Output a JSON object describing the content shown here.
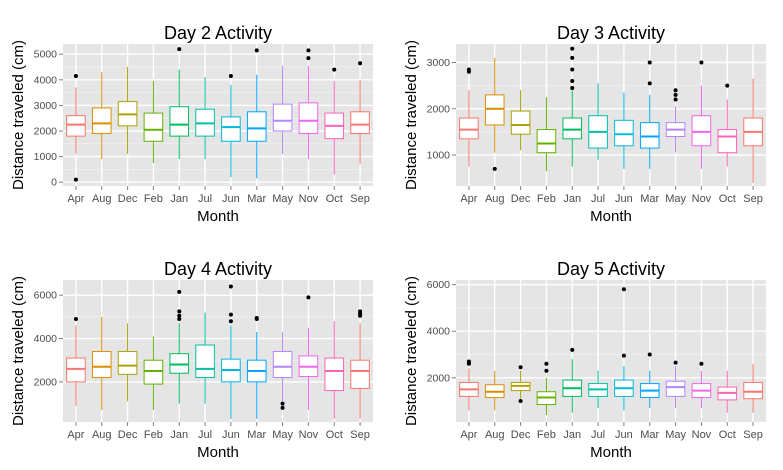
{
  "chart_data": [
    {
      "type": "box",
      "title": "Day 2 Activity",
      "xlabel": "Month",
      "ylabel": "Distance traveled (cm)",
      "ylim": [
        -150,
        5400
      ],
      "yticks": [
        0,
        1000,
        2000,
        3000,
        4000,
        5000
      ],
      "grid": true,
      "legend": "none",
      "categories": [
        "Apr",
        "Aug",
        "Dec",
        "Feb",
        "Jan",
        "Jul",
        "Jun",
        "Mar",
        "May",
        "Nov",
        "Oct",
        "Sep"
      ],
      "boxes": [
        {
          "min": 1100,
          "q1": 1800,
          "median": 2250,
          "q3": 2600,
          "max": 3700,
          "outliers": [
            4150,
            100
          ]
        },
        {
          "min": 900,
          "q1": 1900,
          "median": 2300,
          "q3": 2900,
          "max": 4300,
          "outliers": []
        },
        {
          "min": 1100,
          "q1": 2200,
          "median": 2650,
          "q3": 3150,
          "max": 4500,
          "outliers": []
        },
        {
          "min": 750,
          "q1": 1600,
          "median": 2050,
          "q3": 2700,
          "max": 3950,
          "outliers": []
        },
        {
          "min": 900,
          "q1": 1800,
          "median": 2250,
          "q3": 2950,
          "max": 4400,
          "outliers": [
            5200
          ]
        },
        {
          "min": 900,
          "q1": 1800,
          "median": 2300,
          "q3": 2850,
          "max": 4100,
          "outliers": []
        },
        {
          "min": 200,
          "q1": 1600,
          "median": 2150,
          "q3": 2550,
          "max": 3800,
          "outliers": [
            4150
          ]
        },
        {
          "min": 150,
          "q1": 1600,
          "median": 2100,
          "q3": 2750,
          "max": 4200,
          "outliers": [
            5150
          ]
        },
        {
          "min": 1100,
          "q1": 2000,
          "median": 2400,
          "q3": 3050,
          "max": 4550,
          "outliers": []
        },
        {
          "min": 900,
          "q1": 1900,
          "median": 2400,
          "q3": 3100,
          "max": 4550,
          "outliers": [
            5150,
            4850
          ]
        },
        {
          "min": 300,
          "q1": 1700,
          "median": 2200,
          "q3": 2700,
          "max": 3950,
          "outliers": [
            4400
          ]
        },
        {
          "min": 700,
          "q1": 1900,
          "median": 2250,
          "q3": 2750,
          "max": 4000,
          "outliers": [
            4650
          ]
        }
      ]
    },
    {
      "type": "box",
      "title": "Day 3 Activity",
      "xlabel": "Month",
      "ylabel": "Distance traveled (cm)",
      "ylim": [
        330,
        3400
      ],
      "yticks": [
        1000,
        2000,
        3000
      ],
      "grid": true,
      "legend": "none",
      "categories": [
        "Apr",
        "Aug",
        "Dec",
        "Feb",
        "Jan",
        "Jul",
        "Jun",
        "Mar",
        "May",
        "Nov",
        "Oct",
        "Sep"
      ],
      "boxes": [
        {
          "min": 750,
          "q1": 1350,
          "median": 1550,
          "q3": 1800,
          "max": 2400,
          "outliers": [
            2800,
            2850
          ]
        },
        {
          "min": 1050,
          "q1": 1650,
          "median": 2000,
          "q3": 2300,
          "max": 3100,
          "outliers": [
            700
          ]
        },
        {
          "min": 1100,
          "q1": 1450,
          "median": 1650,
          "q3": 1950,
          "max": 2400,
          "outliers": []
        },
        {
          "min": 650,
          "q1": 1050,
          "median": 1250,
          "q3": 1550,
          "max": 2250,
          "outliers": []
        },
        {
          "min": 750,
          "q1": 1350,
          "median": 1550,
          "q3": 1800,
          "max": 2400,
          "outliers": [
            3300,
            3100,
            2850,
            2600,
            2450
          ]
        },
        {
          "min": 900,
          "q1": 1150,
          "median": 1500,
          "q3": 1850,
          "max": 2550,
          "outliers": []
        },
        {
          "min": 700,
          "q1": 1200,
          "median": 1450,
          "q3": 1750,
          "max": 2350,
          "outliers": []
        },
        {
          "min": 700,
          "q1": 1150,
          "median": 1400,
          "q3": 1700,
          "max": 2300,
          "outliers": [
            3000,
            2550
          ]
        },
        {
          "min": 1050,
          "q1": 1400,
          "median": 1550,
          "q3": 1700,
          "max": 2050,
          "outliers": [
            2400,
            2300,
            2200
          ]
        },
        {
          "min": 700,
          "q1": 1200,
          "median": 1500,
          "q3": 1850,
          "max": 2500,
          "outliers": [
            3000
          ]
        },
        {
          "min": 750,
          "q1": 1050,
          "median": 1400,
          "q3": 1550,
          "max": 2200,
          "outliers": [
            2500
          ]
        },
        {
          "min": 400,
          "q1": 1200,
          "median": 1500,
          "q3": 1800,
          "max": 2650,
          "outliers": []
        }
      ]
    },
    {
      "type": "box",
      "title": "Day 4 Activity",
      "xlabel": "Month",
      "ylabel": "Distance traveled (cm)",
      "ylim": [
        150,
        6700
      ],
      "yticks": [
        2000,
        4000,
        6000
      ],
      "grid": true,
      "legend": "none",
      "categories": [
        "Apr",
        "Aug",
        "Dec",
        "Feb",
        "Jan",
        "Jul",
        "Jun",
        "Mar",
        "May",
        "Nov",
        "Oct",
        "Sep"
      ],
      "boxes": [
        {
          "min": 900,
          "q1": 2000,
          "median": 2600,
          "q3": 3100,
          "max": 4600,
          "outliers": [
            4900
          ]
        },
        {
          "min": 700,
          "q1": 2200,
          "median": 2700,
          "q3": 3400,
          "max": 5000,
          "outliers": []
        },
        {
          "min": 1100,
          "q1": 2350,
          "median": 2750,
          "q3": 3400,
          "max": 4700,
          "outliers": []
        },
        {
          "min": 700,
          "q1": 1900,
          "median": 2500,
          "q3": 3000,
          "max": 4100,
          "outliers": []
        },
        {
          "min": 1000,
          "q1": 2400,
          "median": 2800,
          "q3": 3300,
          "max": 4700,
          "outliers": [
            6150,
            5250,
            5050,
            4900
          ]
        },
        {
          "min": 1000,
          "q1": 2200,
          "median": 2600,
          "q3": 3700,
          "max": 5200,
          "outliers": []
        },
        {
          "min": 300,
          "q1": 2000,
          "median": 2550,
          "q3": 3050,
          "max": 4600,
          "outliers": [
            6400,
            5100,
            4800
          ]
        },
        {
          "min": 300,
          "q1": 2000,
          "median": 2500,
          "q3": 3000,
          "max": 4300,
          "outliers": [
            4950,
            4900
          ]
        },
        {
          "min": 1100,
          "q1": 2200,
          "median": 2700,
          "q3": 3400,
          "max": 4300,
          "outliers": [
            1000,
            800
          ]
        },
        {
          "min": 700,
          "q1": 2250,
          "median": 2700,
          "q3": 3200,
          "max": 4500,
          "outliers": [
            5900
          ]
        },
        {
          "min": 300,
          "q1": 1600,
          "median": 2500,
          "q3": 3100,
          "max": 4800,
          "outliers": []
        },
        {
          "min": 300,
          "q1": 1700,
          "median": 2500,
          "q3": 3000,
          "max": 4700,
          "outliers": [
            5250,
            5150,
            5050
          ]
        }
      ]
    },
    {
      "type": "box",
      "title": "Day 5 Activity",
      "xlabel": "Month",
      "ylabel": "Distance traveled (cm)",
      "ylim": [
        100,
        6200
      ],
      "yticks": [
        2000,
        4000,
        6000
      ],
      "grid": true,
      "legend": "none",
      "categories": [
        "Apr",
        "Aug",
        "Dec",
        "Feb",
        "Jan",
        "Jul",
        "Jun",
        "Mar",
        "May",
        "Nov",
        "Oct",
        "Sep"
      ],
      "boxes": [
        {
          "min": 600,
          "q1": 1200,
          "median": 1500,
          "q3": 1800,
          "max": 2400,
          "outliers": [
            2700,
            2650,
            2600
          ]
        },
        {
          "min": 600,
          "q1": 1150,
          "median": 1400,
          "q3": 1700,
          "max": 2300,
          "outliers": []
        },
        {
          "min": 1100,
          "q1": 1450,
          "median": 1650,
          "q3": 1800,
          "max": 2300,
          "outliers": [
            2450,
            1000
          ]
        },
        {
          "min": 400,
          "q1": 850,
          "median": 1150,
          "q3": 1400,
          "max": 2000,
          "outliers": [
            2600,
            2300
          ]
        },
        {
          "min": 500,
          "q1": 1200,
          "median": 1550,
          "q3": 1900,
          "max": 2800,
          "outliers": [
            3200
          ]
        },
        {
          "min": 700,
          "q1": 1200,
          "median": 1500,
          "q3": 1750,
          "max": 2300,
          "outliers": []
        },
        {
          "min": 600,
          "q1": 1200,
          "median": 1550,
          "q3": 1900,
          "max": 2500,
          "outliers": [
            5800,
            2950
          ]
        },
        {
          "min": 700,
          "q1": 1150,
          "median": 1450,
          "q3": 1750,
          "max": 2300,
          "outliers": [
            3000
          ]
        },
        {
          "min": 700,
          "q1": 1200,
          "median": 1600,
          "q3": 1850,
          "max": 2500,
          "outliers": [
            2650
          ]
        },
        {
          "min": 700,
          "q1": 1150,
          "median": 1450,
          "q3": 1750,
          "max": 2300,
          "outliers": [
            2600
          ]
        },
        {
          "min": 500,
          "q1": 1050,
          "median": 1350,
          "q3": 1600,
          "max": 2300,
          "outliers": []
        },
        {
          "min": 500,
          "q1": 1100,
          "median": 1400,
          "q3": 1800,
          "max": 2600,
          "outliers": []
        }
      ]
    }
  ],
  "colors": {
    "panel_background": "#e5e5e5",
    "grid_line": "#ffffff",
    "series": [
      "#f8766d",
      "#db8e00",
      "#aea200",
      "#64b200",
      "#00bd5c",
      "#00c1a7",
      "#00bade",
      "#00a6ff",
      "#b385ff",
      "#ef67eb",
      "#ff63b6",
      "#f8766d"
    ],
    "outlier": "#000000"
  }
}
